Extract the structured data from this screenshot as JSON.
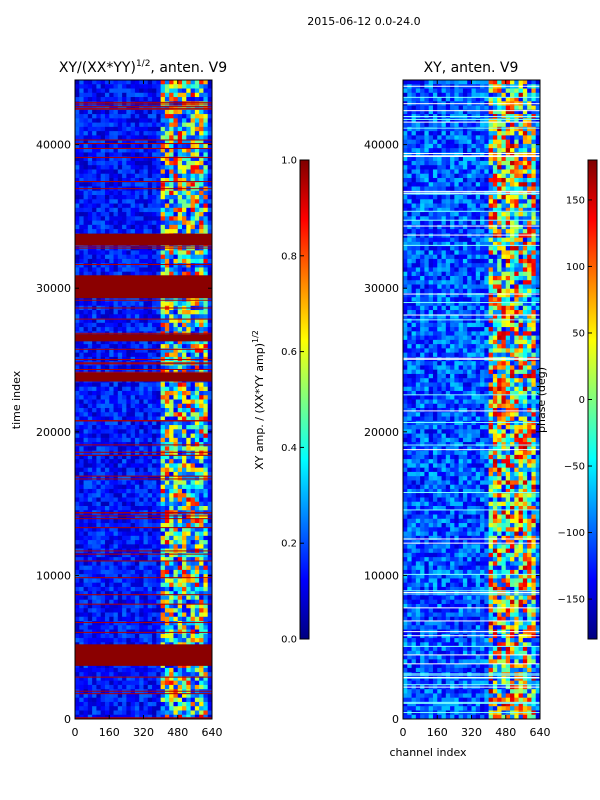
{
  "figure": {
    "suptitle": "2015-06-12 0.0-24.0"
  },
  "chart_data": [
    {
      "type": "heatmap",
      "title": "XY/(XX*YY)^1/2, anten. V9",
      "title_main": "XY/(XX*YY)",
      "title_exp": "1/2",
      "title_rest": ", anten. V9",
      "ylabel": "time index",
      "xlabel": "",
      "xlim": [
        0,
        640
      ],
      "ylim": [
        0,
        44500
      ],
      "xticks": [
        "0",
        "160",
        "320",
        "480",
        "640"
      ],
      "yticks": [
        "0",
        "10000",
        "20000",
        "30000",
        "40000"
      ],
      "xtick_values": [
        0,
        160,
        320,
        480,
        640
      ],
      "ytick_values": [
        0,
        10000,
        20000,
        30000,
        40000
      ],
      "colormap": "jet",
      "flagged_time_bands": [
        [
          3700,
          5200
        ],
        [
          26300,
          26800
        ],
        [
          29300,
          30900
        ],
        [
          33000,
          33800
        ],
        [
          23500,
          24100
        ]
      ],
      "colorbar": {
        "label_main": "XY amp. / (XX*YY amp)",
        "label_exp": "1/2",
        "range": [
          0.0,
          1.0
        ],
        "ticks": [
          "0.0",
          "0.2",
          "0.4",
          "0.6",
          "0.8",
          "1.0"
        ],
        "tick_values": [
          0.0,
          0.2,
          0.4,
          0.6,
          0.8,
          1.0
        ]
      }
    },
    {
      "type": "heatmap",
      "title": "XY, anten. V9",
      "ylabel": "",
      "xlabel": "channel index",
      "xlim": [
        0,
        640
      ],
      "ylim": [
        0,
        44500
      ],
      "xticks": [
        "0",
        "160",
        "320",
        "480",
        "640"
      ],
      "yticks": [
        "0",
        "10000",
        "20000",
        "30000",
        "40000"
      ],
      "xtick_values": [
        0,
        160,
        320,
        480,
        640
      ],
      "ytick_values": [
        0,
        10000,
        20000,
        30000,
        40000
      ],
      "colormap": "jet",
      "colorbar": {
        "label": "phase (deg)",
        "range": [
          -180,
          180
        ],
        "ticks": [
          "−150",
          "−100",
          "−50",
          "0",
          "50",
          "100",
          "150"
        ],
        "tick_values": [
          -150,
          -100,
          -50,
          0,
          50,
          100,
          150
        ]
      }
    }
  ],
  "colors": {
    "axis": "#000000",
    "jet_low": "#00007f",
    "jet_high": "#7f0000",
    "flag": "#8b0000"
  }
}
